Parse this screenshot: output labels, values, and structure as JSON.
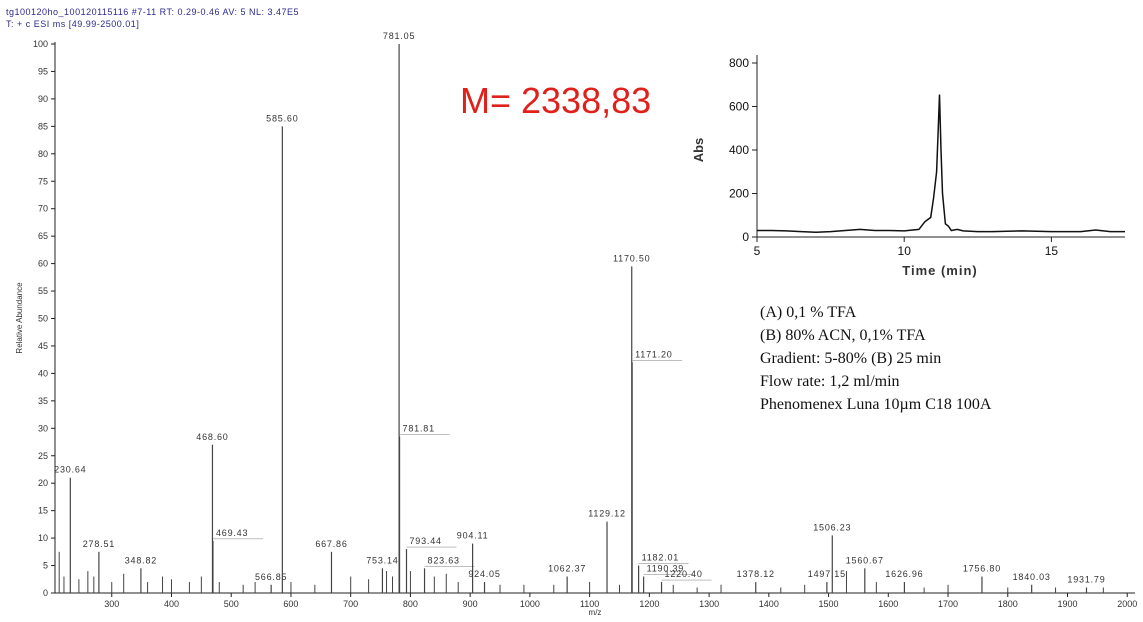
{
  "chart_data": [
    {
      "type": "spectrum",
      "header": [
        "tg100120ho_100120115116 #7-11  RT: 0.29-0.46  AV: 5  NL: 3.47E5",
        "T: + c ESI ms [49.99-2500.01]"
      ],
      "annotation": "M= 2338,83",
      "y_label": "Relative Abundance",
      "x_label": "m/z",
      "color": "#444444",
      "label_color": "#333333",
      "xlim": [
        205,
        2013
      ],
      "ylim": [
        0,
        100
      ],
      "xticks": [
        300,
        400,
        500,
        600,
        700,
        800,
        900,
        1000,
        1100,
        1200,
        1300,
        1400,
        1500,
        1600,
        1700,
        1800,
        1900,
        2000
      ],
      "yticks": [
        0,
        5,
        10,
        15,
        20,
        25,
        30,
        35,
        40,
        45,
        50,
        55,
        60,
        65,
        70,
        75,
        80,
        85,
        90,
        95,
        100
      ],
      "x": [
        230.64,
        278.51,
        348.82,
        468.6,
        469.43,
        566.85,
        585.6,
        667.86,
        753.14,
        781.05,
        781.81,
        793.44,
        823.63,
        904.11,
        924.05,
        1062.37,
        1129.12,
        1170.5,
        1171.2,
        1182.01,
        1190.39,
        1220.4,
        1378.12,
        1497.15,
        1506.23,
        1560.67,
        1626.96,
        1756.8,
        1840.03,
        1931.79
      ],
      "x_labels": [
        "230.64",
        "278.51",
        "348.82",
        "468.60",
        "469.43",
        "566.85",
        "585.60",
        "667.86",
        "753.14",
        "781.05",
        "781.81",
        "793.44",
        "823.63",
        "904.11",
        "924.05",
        "1062.37",
        "1129.12",
        "1170.50",
        "1171.20",
        "1182.01",
        "1190.39",
        "1220.40",
        "1378.12",
        "1497.15",
        "1506.23",
        "1560.67",
        "1626.96",
        "1756.80",
        "1840.03",
        "1931.79"
      ],
      "values": [
        21,
        7.5,
        4.5,
        27,
        9.5,
        1.5,
        85,
        7.5,
        4.5,
        100,
        28.5,
        8,
        4.5,
        9,
        2,
        3,
        13,
        59.5,
        42,
        5,
        3,
        2,
        2,
        2,
        10.5,
        4.5,
        2,
        3,
        1.5,
        1
      ],
      "minor_x": [
        212,
        220,
        245,
        260,
        270,
        300,
        320,
        360,
        385,
        400,
        430,
        450,
        480,
        520,
        540,
        600,
        640,
        700,
        730,
        760,
        770,
        800,
        840,
        860,
        880,
        950,
        990,
        1040,
        1100,
        1150,
        1240,
        1280,
        1320,
        1420,
        1460,
        1530,
        1580,
        1660,
        1700,
        1800,
        1880,
        1960
      ],
      "minor_values": [
        7.5,
        3,
        2.5,
        4,
        3,
        2,
        3.5,
        2,
        3,
        2.5,
        2,
        3,
        2,
        1.5,
        2,
        2,
        1.5,
        3,
        2.5,
        4,
        3,
        4,
        3,
        3.5,
        2,
        1.5,
        1.5,
        1.5,
        2,
        1.5,
        1.5,
        1,
        1.5,
        1,
        1.5,
        4,
        2,
        1,
        1.5,
        1,
        1,
        1
      ]
    },
    {
      "type": "line",
      "x_label": "Time (min)",
      "y_label": "Abs",
      "color": "#111111",
      "xlim": [
        5,
        17.5
      ],
      "ylim": [
        0,
        800
      ],
      "xticks": [
        5,
        10,
        15
      ],
      "yticks": [
        0,
        200,
        400,
        600,
        800
      ],
      "x": [
        5,
        5.5,
        6,
        6.5,
        7,
        7.5,
        8,
        8.5,
        9,
        9.5,
        10,
        10.5,
        10.7,
        10.9,
        11.0,
        11.1,
        11.15,
        11.2,
        11.25,
        11.3,
        11.4,
        11.5,
        11.6,
        11.8,
        12,
        12.5,
        13,
        14,
        15,
        16,
        16.5,
        17,
        17.5
      ],
      "values": [
        30,
        30,
        28,
        25,
        22,
        25,
        30,
        35,
        30,
        30,
        28,
        35,
        70,
        90,
        180,
        300,
        480,
        655,
        400,
        200,
        60,
        50,
        30,
        35,
        28,
        25,
        25,
        28,
        25,
        25,
        32,
        25,
        25
      ]
    },
    {
      "type": "text",
      "lines": [
        "(A)    0,1 % TFA",
        "(B)    80% ACN, 0,1% TFA",
        "Gradient: 5-80%  (B) 25 min",
        "Flow rate: 1,2 ml/min",
        "Phenomenex Luna 10µm C18 100A"
      ]
    }
  ]
}
